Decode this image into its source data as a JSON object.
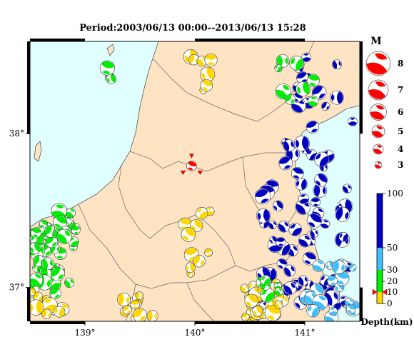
{
  "title": "Period:2003/06/13 00:00--2013/06/13 15:28",
  "map": {
    "lon_range": [
      138.5,
      141.5
    ],
    "lat_range": [
      36.78,
      38.6
    ],
    "x_ticks": [
      {
        "value": 139,
        "label": "139°"
      },
      {
        "value": 140,
        "label": "140°"
      },
      {
        "value": 141,
        "label": "141°"
      }
    ],
    "y_ticks": [
      {
        "value": 37,
        "label": "37°"
      },
      {
        "value": 38,
        "label": "38°"
      }
    ],
    "colors": {
      "sea": "#e0ffff",
      "land": "#ffe4c4",
      "boundary": "#666666",
      "frame": "#000000"
    },
    "mainshock": {
      "lon": 139.97,
      "lat": 37.79,
      "color": "#ff0000",
      "marker": "red triangles"
    }
  },
  "magnitude_legend": {
    "title": "M",
    "items": [
      {
        "value": "8"
      },
      {
        "value": "7"
      },
      {
        "value": "6"
      },
      {
        "value": "5"
      },
      {
        "value": "4"
      },
      {
        "value": "3"
      }
    ],
    "color": "#ff0000"
  },
  "depth_scale": {
    "label": "Depth(km)",
    "ticks": [
      {
        "value": 0,
        "label": "0"
      },
      {
        "value": 10,
        "label": "10"
      },
      {
        "value": 20,
        "label": "20"
      },
      {
        "value": 30,
        "label": "30"
      },
      {
        "value": 50,
        "label": "50"
      },
      {
        "value": 100,
        "label": "100"
      }
    ],
    "bands": [
      {
        "from": 0,
        "to": 10,
        "color": "#ffd700"
      },
      {
        "from": 10,
        "to": 20,
        "color": "#00ee00"
      },
      {
        "from": 20,
        "to": 30,
        "color": "#00ee00"
      },
      {
        "from": 30,
        "to": 50,
        "color": "#40bfff"
      },
      {
        "from": 50,
        "to": 100,
        "color": "#0000c0"
      }
    ],
    "marker_depth": 10
  },
  "mechanism_clusters": [
    {
      "name": "niigata-coast-sw",
      "color": "#00ee00",
      "lon": [
        138.5,
        138.9
      ],
      "lat": [
        36.95,
        37.45
      ],
      "count": 45,
      "seed": 3
    },
    {
      "name": "niigata-coast-sw-yellow",
      "color": "#ffd700",
      "lon": [
        138.5,
        138.8
      ],
      "lat": [
        36.78,
        37.0
      ],
      "count": 10,
      "seed": 5
    },
    {
      "name": "chuetsu",
      "color": "#00ee00",
      "lon": [
        138.75,
        138.95
      ],
      "lat": [
        37.3,
        37.5
      ],
      "count": 12,
      "seed": 7
    },
    {
      "name": "fukushima-coast-deep",
      "color": "#0000c0",
      "lon": [
        140.6,
        141.4
      ],
      "lat": [
        36.85,
        37.95
      ],
      "count": 70,
      "seed": 11
    },
    {
      "name": "fukushima-offshore-mid",
      "color": "#40bfff",
      "lon": [
        141.0,
        141.45
      ],
      "lat": [
        36.8,
        37.2
      ],
      "count": 18,
      "seed": 13
    },
    {
      "name": "ibaraki-north-shallow",
      "color": "#ffd700",
      "lon": [
        140.45,
        140.8
      ],
      "lat": [
        36.8,
        37.05
      ],
      "count": 35,
      "seed": 17
    },
    {
      "name": "iwaki-green",
      "color": "#00ee00",
      "lon": [
        140.6,
        140.85
      ],
      "lat": [
        36.95,
        37.05
      ],
      "count": 6,
      "seed": 19
    },
    {
      "name": "miyagi-offshore-blue",
      "color": "#0000c0",
      "lon": [
        140.9,
        141.45
      ],
      "lat": [
        38.0,
        38.55
      ],
      "count": 14,
      "seed": 23
    },
    {
      "name": "miyagi-green",
      "color": "#00ee00",
      "lon": [
        140.7,
        141.1
      ],
      "lat": [
        38.2,
        38.5
      ],
      "count": 8,
      "seed": 29
    },
    {
      "name": "aizu-yellow",
      "color": "#ffd700",
      "lon": [
        139.9,
        140.15
      ],
      "lat": [
        37.05,
        37.5
      ],
      "count": 10,
      "seed": 31
    },
    {
      "name": "tochigi-yellow",
      "color": "#ffd700",
      "lon": [
        139.35,
        139.7
      ],
      "lat": [
        36.8,
        36.95
      ],
      "count": 12,
      "seed": 37
    },
    {
      "name": "yamagata-yellow",
      "color": "#ffd700",
      "lon": [
        139.9,
        140.15
      ],
      "lat": [
        38.2,
        38.5
      ],
      "count": 7,
      "seed": 41
    },
    {
      "name": "sea-of-japan-green",
      "color": "#00ee00",
      "lon": [
        139.2,
        139.3
      ],
      "lat": [
        38.35,
        38.45
      ],
      "count": 3,
      "seed": 43
    }
  ]
}
